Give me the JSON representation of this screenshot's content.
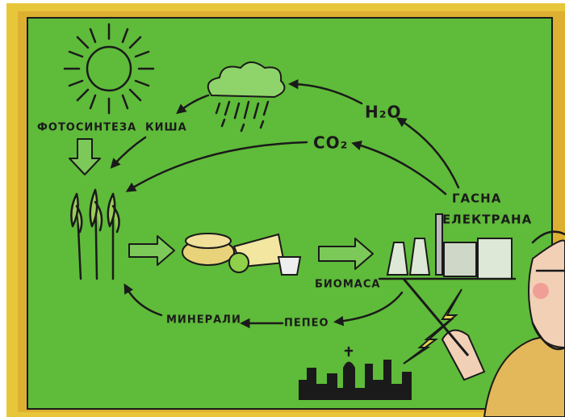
{
  "labels": {
    "photosynthesis": "ФОТОСИНТЕЗА",
    "rain": "КИША",
    "water": "H₂O",
    "co2": "CO₂",
    "power_plant": [
      "ГАСНА",
      "ЕЛЕКТРАНА"
    ],
    "biomass": "БИОМАСА",
    "ash": "ПЕПЕО",
    "minerals": "МИНЕРАЛИ"
  }
}
